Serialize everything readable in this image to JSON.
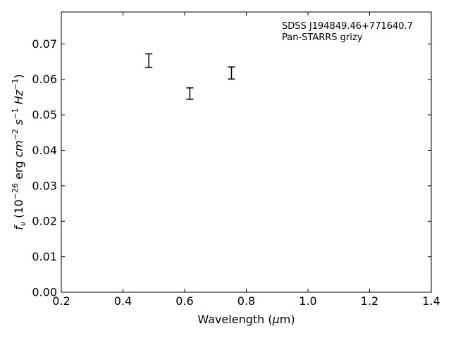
{
  "chart_data": {
    "type": "scatter",
    "annotations": [
      "SDSS J194849.46+771640.7",
      "Pan-STARRS grizy"
    ],
    "xlabel": {
      "text": "Wavelength (",
      "symbol": "μ",
      "unit": "m)"
    },
    "ylabel": {
      "f": "f",
      "nu": "ν",
      "mid": " (10",
      "exp1": "−26",
      "erg": " erg ",
      "cm": "cm",
      "exp2": "−2",
      "s": "s",
      "exp3": "−1",
      "hz": "Hz",
      "exp4": "−1",
      "close": ")"
    },
    "xlim": [
      0.2,
      1.4
    ],
    "ylim": [
      0.0,
      0.079
    ],
    "x_ticks": [
      0.2,
      0.4,
      0.6,
      0.8,
      1.0,
      1.2,
      1.4
    ],
    "x_tick_labels": [
      "0.2",
      "0.4",
      "0.6",
      "0.8",
      "1.0",
      "1.2",
      "1.4"
    ],
    "y_ticks": [
      0.0,
      0.01,
      0.02,
      0.03,
      0.04,
      0.05,
      0.06,
      0.07
    ],
    "y_tick_labels": [
      "0.00",
      "0.01",
      "0.02",
      "0.03",
      "0.04",
      "0.05",
      "0.06",
      "0.07"
    ],
    "grid": false,
    "points": [
      {
        "x": 0.484,
        "y": 0.0653,
        "yerr": 0.0019
      },
      {
        "x": 0.617,
        "y": 0.056,
        "yerr": 0.0016
      },
      {
        "x": 0.752,
        "y": 0.0618,
        "yerr": 0.0017
      }
    ]
  }
}
